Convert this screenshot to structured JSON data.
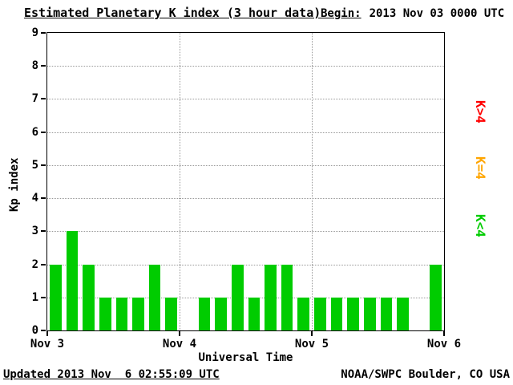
{
  "header": {
    "title": "Estimated Planetary K index (3 hour data)",
    "begin_label": "Begin:",
    "begin_value": "2013 Nov 03 0000 UTC"
  },
  "footer": {
    "updated": "Updated 2013 Nov  6 02:55:09 UTC",
    "source": "NOAA/SWPC Boulder, CO USA"
  },
  "chart_data": {
    "type": "bar",
    "title": "Estimated Planetary K index (3 hour data)",
    "begin": "2013 Nov 03 0000 UTC",
    "xlabel": "Universal Time",
    "ylabel": "Kp index",
    "ylim": [
      0,
      9
    ],
    "yticks": [
      0,
      1,
      2,
      3,
      4,
      5,
      6,
      7,
      8,
      9
    ],
    "xticks": [
      "Nov 3",
      "Nov 4",
      "Nov 5",
      "Nov 6"
    ],
    "bin_hours": 3,
    "bars_per_day": 8,
    "days": [
      {
        "date": "Nov 3",
        "values": [
          2,
          3,
          2,
          1,
          1,
          1,
          2,
          1
        ]
      },
      {
        "date": "Nov 4",
        "values": [
          0,
          1,
          1,
          2,
          1,
          2,
          2,
          1
        ]
      },
      {
        "date": "Nov 5",
        "values": [
          1,
          1,
          1,
          1,
          1,
          1,
          0,
          2
        ]
      }
    ],
    "bar_color": "#00CC00",
    "grid": true,
    "legend_position": "right",
    "legend": [
      {
        "label": "K>4",
        "color": "#FF0000"
      },
      {
        "label": "K=4",
        "color": "#FFA500"
      },
      {
        "label": "K<4",
        "color": "#00CC00"
      }
    ]
  }
}
